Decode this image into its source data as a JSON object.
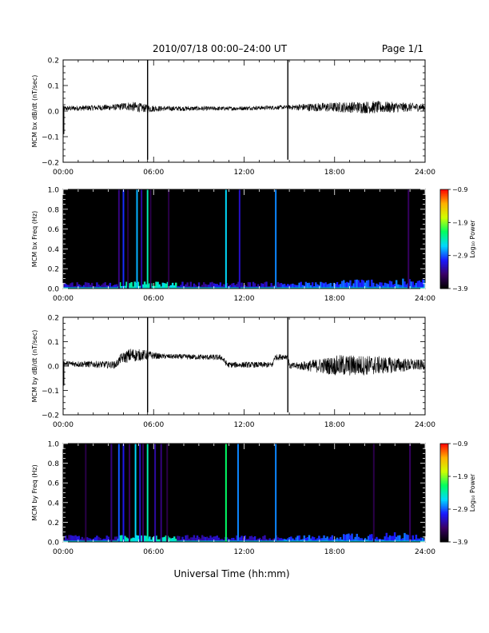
{
  "header": {
    "title": "2010/07/18  00:00–24:00 UT",
    "page": "Page 1/1"
  },
  "footer": {
    "xlabel": "Universal Time (hh:mm)"
  },
  "colorbar": {
    "ticks": [
      -0.9,
      -1.9,
      -2.9,
      -3.9
    ],
    "tick_labels": [
      "−0.9",
      "−1.9",
      "−2.9",
      "−3.9"
    ],
    "label": "Log₁₀ Power",
    "range": [
      -3.9,
      -0.9
    ],
    "colors": [
      "#000000",
      "#3a0066",
      "#1a1aff",
      "#00d8ff",
      "#00ff60",
      "#d0ff00",
      "#ffb000",
      "#ff0000"
    ]
  },
  "chart_data": [
    {
      "type": "line",
      "ylabel": "MCM bx dB/dt (nT/sec)",
      "xlim": [
        0,
        24
      ],
      "ylim": [
        -0.2,
        0.2
      ],
      "x_ticks": [
        "00:00",
        "06:00",
        "12:00",
        "18:00",
        "24:00"
      ],
      "y_ticks": [
        "0.2",
        "0.1",
        "0.0",
        "−0.1",
        "−0.2"
      ],
      "baseline": [
        [
          0,
          0.01
        ],
        [
          3.5,
          0.015
        ],
        [
          4.2,
          0.02
        ],
        [
          5.6,
          0.01
        ],
        [
          11,
          0.01
        ],
        [
          14.9,
          0.015
        ],
        [
          24,
          0.015
        ]
      ],
      "noise": [
        [
          0,
          0.01
        ],
        [
          3.5,
          0.012
        ],
        [
          4.8,
          0.02
        ],
        [
          6.5,
          0.01
        ],
        [
          10.8,
          0.008
        ],
        [
          14.9,
          0.008
        ],
        [
          16,
          0.015
        ],
        [
          20.5,
          0.025
        ],
        [
          24,
          0.015
        ]
      ],
      "spikes": [
        {
          "t": 5.6,
          "max": 0.2,
          "min": -0.19
        },
        {
          "t": 14.9,
          "max": 0.2,
          "min": -0.19
        },
        {
          "t": 0.05,
          "max": 0.02,
          "min": -0.09
        }
      ]
    },
    {
      "type": "heatmap",
      "ylabel": "MCM bx Freq (Hz)",
      "xlim": [
        0,
        24
      ],
      "ylim": [
        0,
        1
      ],
      "x_ticks": [
        "00:00",
        "06:00",
        "12:00",
        "18:00",
        "24:00"
      ],
      "y_ticks": [
        "1.0",
        "0.8",
        "0.6",
        "0.4",
        "0.2",
        "0.0"
      ],
      "lines": [
        {
          "t": 3.7,
          "level": -3.4
        },
        {
          "t": 4.0,
          "level": -3.0
        },
        {
          "t": 4.3,
          "level": -3.6
        },
        {
          "t": 4.9,
          "level": -2.7
        },
        {
          "t": 5.2,
          "level": -3.3
        },
        {
          "t": 5.6,
          "level": -2.4
        },
        {
          "t": 5.8,
          "level": -3.6
        },
        {
          "t": 7.0,
          "level": -3.6
        },
        {
          "t": 10.8,
          "level": -2.6
        },
        {
          "t": 11.7,
          "level": -3.2
        },
        {
          "t": 14.1,
          "level": -2.8
        },
        {
          "t": 22.9,
          "level": -3.5
        }
      ]
    },
    {
      "type": "line",
      "ylabel": "MCM by dB/dt (nT/sec)",
      "xlim": [
        0,
        24
      ],
      "ylim": [
        -0.2,
        0.2
      ],
      "x_ticks": [
        "00:00",
        "06:00",
        "12:00",
        "18:00",
        "24:00"
      ],
      "y_ticks": [
        "0.2",
        "0.1",
        "0.0",
        "−0.1",
        "−0.2"
      ],
      "baseline": [
        [
          0,
          0.01
        ],
        [
          3.5,
          0.005
        ],
        [
          3.8,
          0.03
        ],
        [
          4.5,
          0.045
        ],
        [
          5.6,
          0.045
        ],
        [
          6.5,
          0.04
        ],
        [
          10.5,
          0.035
        ],
        [
          10.9,
          0.005
        ],
        [
          13.9,
          0.005
        ],
        [
          14.0,
          0.035
        ],
        [
          14.9,
          0.04
        ],
        [
          15.0,
          0.0
        ],
        [
          24,
          0.005
        ]
      ],
      "noise": [
        [
          0,
          0.012
        ],
        [
          3.5,
          0.015
        ],
        [
          4.5,
          0.03
        ],
        [
          6.5,
          0.01
        ],
        [
          10.8,
          0.012
        ],
        [
          14.9,
          0.012
        ],
        [
          15.5,
          0.015
        ],
        [
          18.5,
          0.045
        ],
        [
          20.5,
          0.04
        ],
        [
          24,
          0.02
        ]
      ],
      "spikes": [
        {
          "t": 5.6,
          "max": 0.2,
          "min": -0.19
        },
        {
          "t": 14.9,
          "max": 0.2,
          "min": -0.19
        },
        {
          "t": 0.05,
          "max": 0.02,
          "min": -0.08
        }
      ]
    },
    {
      "type": "heatmap",
      "ylabel": "MCM by Freq (Hz)",
      "xlim": [
        0,
        24
      ],
      "ylim": [
        0,
        1
      ],
      "x_ticks": [
        "00:00",
        "06:00",
        "12:00",
        "18:00",
        "24:00"
      ],
      "y_ticks": [
        "1.0",
        "0.8",
        "0.6",
        "0.4",
        "0.2",
        "0.0"
      ],
      "lines": [
        {
          "t": 1.5,
          "level": -3.6
        },
        {
          "t": 3.2,
          "level": -3.4
        },
        {
          "t": 3.7,
          "level": -2.9
        },
        {
          "t": 4.0,
          "level": -3.1
        },
        {
          "t": 4.4,
          "level": -3.5
        },
        {
          "t": 4.8,
          "level": -2.6
        },
        {
          "t": 5.1,
          "level": -3.2
        },
        {
          "t": 5.3,
          "level": -3.5
        },
        {
          "t": 5.6,
          "level": -2.4
        },
        {
          "t": 6.1,
          "level": -3.3
        },
        {
          "t": 6.5,
          "level": -3.4
        },
        {
          "t": 6.9,
          "level": -3.6
        },
        {
          "t": 10.8,
          "level": -2.2
        },
        {
          "t": 11.6,
          "level": -2.8
        },
        {
          "t": 14.1,
          "level": -2.8
        },
        {
          "t": 20.6,
          "level": -3.6
        },
        {
          "t": 23.0,
          "level": -3.5
        }
      ]
    }
  ]
}
